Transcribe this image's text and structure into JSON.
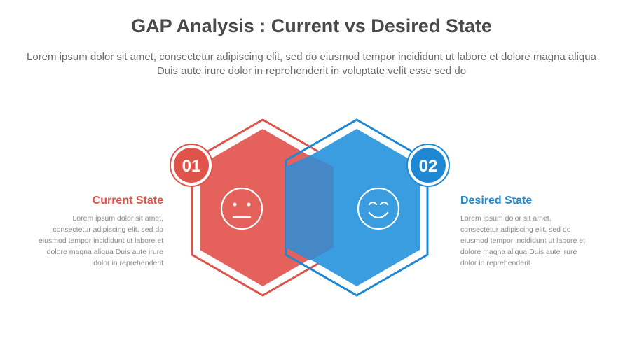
{
  "header": {
    "title": "GAP Analysis : Current vs Desired State",
    "subtitle": "Lorem ipsum dolor sit amet, consectetur adipiscing elit, sed do eiusmod tempor incididunt ut labore et dolore magna aliqua Duis aute irure dolor in reprehenderit in voluptate velit esse sed do"
  },
  "colors": {
    "current": "#e0534b",
    "current_fill": "#e5625c",
    "desired": "#1e88d4",
    "desired_fill": "#3a9de0",
    "overlap": "#4687c7",
    "title_text": "#4a4a4a",
    "body_text": "#8a8a8a"
  },
  "current": {
    "number": "01",
    "title": "Current State",
    "icon": "neutral-face-icon",
    "text": "Lorem ipsum dolor sit amet, consectetur adipiscing elit, sed do eiusmod tempor incididunt ut labore et dolore magna aliqua Duis aute irure dolor in reprehenderit"
  },
  "desired": {
    "number": "02",
    "title": "Desired State",
    "icon": "smiling-face-icon",
    "text": "Lorem ipsum dolor sit amet, consectetur adipiscing elit, sed do eiusmod tempor incididunt ut labore et dolore magna aliqua Duis aute irure dolor in reprehenderit"
  }
}
